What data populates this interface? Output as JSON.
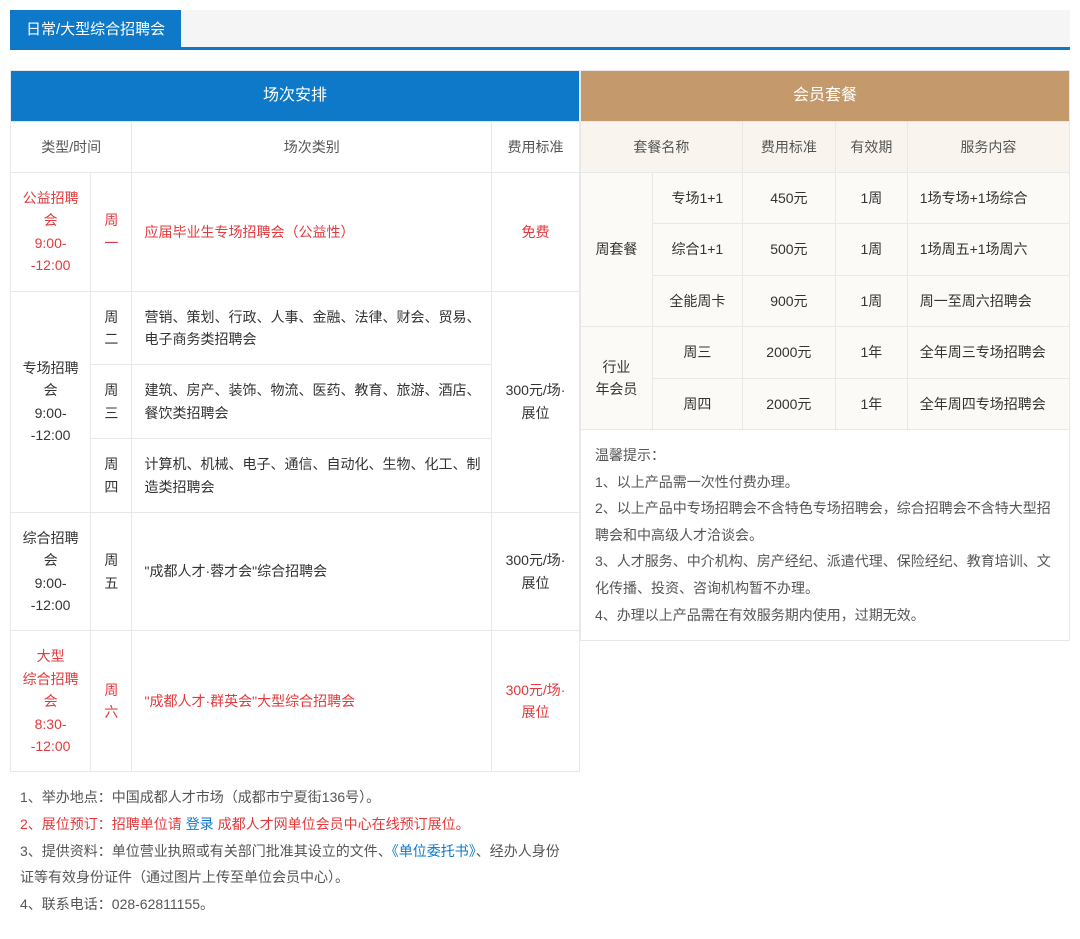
{
  "colors": {
    "blue": "#0e79c9",
    "brown": "#c49a6c",
    "red": "#e3393c",
    "border": "#e8e8e8",
    "rightCellBg": "#fcfaf6"
  },
  "tab": {
    "label": "日常/大型综合招聘会"
  },
  "left": {
    "headerTitle": "场次安排",
    "subHeaders": {
      "typeTime": "类型/时间",
      "category": "场次类别",
      "fee": "费用标准"
    },
    "rows": {
      "r1": {
        "typeTime": "公益招聘会\n9:00--12:00",
        "day": "周一",
        "cat": "应届毕业生专场招聘会（公益性）",
        "fee": "免费"
      },
      "r2": {
        "typeTime": "专场招聘会\n9:00--12:00",
        "day2": "周二",
        "cat2": "营销、策划、行政、人事、金融、法律、财会、贸易、电子商务类招聘会",
        "day3": "周三",
        "cat3": "建筑、房产、装饰、物流、医药、教育、旅游、酒店、餐饮类招聘会",
        "day4": "周四",
        "cat4": "计算机、机械、电子、通信、自动化、生物、化工、制造类招聘会",
        "fee": "300元/场·展位"
      },
      "r3": {
        "typeTime": "综合招聘会\n9:00--12:00",
        "day": "周五",
        "cat": "\"成都人才·蓉才会\"综合招聘会",
        "fee": "300元/场·展位"
      },
      "r4": {
        "typeTime": "大型\n综合招聘会\n8:30--12:00",
        "day": "周六",
        "cat": "\"成都人才·群英会\"大型综合招聘会",
        "fee": "300元/场·展位"
      }
    },
    "notes": {
      "n1": "1、举办地点：中国成都人才市场（成都市宁夏街136号）。",
      "n2a": "2、展位预订：招聘单位请 ",
      "n2b": "登录",
      "n2c": " 成都人才网单位会员中心在线预订展位。",
      "n3a": "3、提供资料：单位营业执照或有关部门批准其设立的文件、",
      "n3b": "《单位委托书》",
      "n3c": "、经办人身份证等有效身份证件（通过图片上传至单位会员中心）。",
      "n4": "4、联系电话：028-62811155。"
    }
  },
  "right": {
    "headerTitle": "会员套餐",
    "subHeaders": {
      "pkgName": "套餐名称",
      "fee": "费用标准",
      "valid": "有效期",
      "content": "服务内容"
    },
    "groups": {
      "g1": {
        "label": "周套餐"
      },
      "g2": {
        "label": "行业\n年会员"
      }
    },
    "rows": {
      "p1": {
        "name": "专场1+1",
        "fee": "450元",
        "valid": "1周",
        "content": "1场专场+1场综合"
      },
      "p2": {
        "name": "综合1+1",
        "fee": "500元",
        "valid": "1周",
        "content": "1场周五+1场周六"
      },
      "p3": {
        "name": "全能周卡",
        "fee": "900元",
        "valid": "1周",
        "content": "周一至周六招聘会"
      },
      "p4": {
        "name": "周三",
        "fee": "2000元",
        "valid": "1年",
        "content": "全年周三专场招聘会"
      },
      "p5": {
        "name": "周四",
        "fee": "2000元",
        "valid": "1年",
        "content": "全年周四专场招聘会"
      }
    },
    "notes": {
      "title": "温馨提示：",
      "n1": "1、以上产品需一次性付费办理。",
      "n2": "2、以上产品中专场招聘会不含特色专场招聘会，综合招聘会不含特大型招聘会和中高级人才洽谈会。",
      "n3": "3、人才服务、中介机构、房产经纪、派遣代理、保险经纪、教育培训、文化传播、投资、咨询机构暂不办理。",
      "n4": "4、办理以上产品需在有效服务期内使用，过期无效。"
    }
  }
}
